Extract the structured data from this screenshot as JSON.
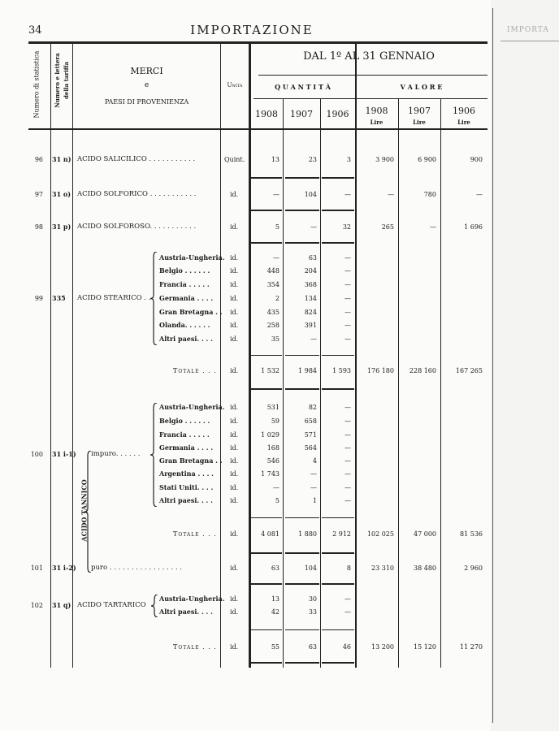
{
  "page": {
    "number": "34",
    "title": "IMPORTAZIONE"
  },
  "header": {
    "col_num_stat": "Numero di statistica",
    "col_num_tariff": "Numero e lettera della tariffa",
    "merci_1": "MERCI",
    "merci_2": "e",
    "merci_3": "PAESI DI PROVENIENZA",
    "unit": "Unità",
    "period": "DAL 1º AL 31 GENNAIO",
    "quantity": "Q U A N T I T À",
    "value": "V A L O R E",
    "years": [
      "1908",
      "1907",
      "1906",
      "1908",
      "1907",
      "1906"
    ],
    "currency": "Lire"
  },
  "groups": [
    {
      "num": "96",
      "tariff": "31 n)",
      "name": "ACIDO SALICILICO . . . . . . . . . . ."
    },
    {
      "num": "97",
      "tariff": "31 o)",
      "name": "ACIDO SOLFORICO . . . . . . . . . . ."
    },
    {
      "num": "98",
      "tariff": "31 p)",
      "name": "ACIDO SOLFOROSO. . . . . . . . . . ."
    },
    {
      "num": "99",
      "tariff": "335",
      "name": "ACIDO STEARICO . ."
    },
    {
      "num": "100",
      "tariff": "31 i-1)",
      "name": "impuro. . . . . ."
    },
    {
      "num": "101",
      "tariff": "31 i-2)",
      "name": "puro . . . . . . . . . . . . . . . . ."
    },
    {
      "num": "102",
      "tariff": "31 q)",
      "name": "ACIDO TARTARICO"
    }
  ],
  "tannic_label": "ACIDO TANNICO",
  "total_label": "Totale . . .",
  "lines": [
    {
      "country": "",
      "unit": "Quint.",
      "q": [
        "13",
        "23",
        "3"
      ],
      "v": [
        "3 900",
        "6 900",
        "900"
      ]
    },
    {
      "country": "",
      "unit": "id.",
      "q": [
        "—",
        "104",
        "—"
      ],
      "v": [
        "—",
        "780",
        "—"
      ]
    },
    {
      "country": "",
      "unit": "id.",
      "q": [
        "5",
        "—",
        "32"
      ],
      "v": [
        "265",
        "—",
        "1 696"
      ]
    },
    {
      "country": "Austria-Ungheria.",
      "unit": "id.",
      "q": [
        "—",
        "63",
        "—"
      ],
      "v": [
        "",
        "",
        ""
      ]
    },
    {
      "country": "Belgio . . . . . .",
      "unit": "id.",
      "q": [
        "448",
        "204",
        "—"
      ],
      "v": [
        "",
        "",
        ""
      ]
    },
    {
      "country": "Francia . . . . .",
      "unit": "id.",
      "q": [
        "354",
        "368",
        "—"
      ],
      "v": [
        "",
        "",
        ""
      ]
    },
    {
      "country": "Germania . . . .",
      "unit": "id.",
      "q": [
        "2",
        "134",
        "—"
      ],
      "v": [
        "",
        "",
        ""
      ]
    },
    {
      "country": "Gran Bretagna . .",
      "unit": "id.",
      "q": [
        "435",
        "824",
        "—"
      ],
      "v": [
        "",
        "",
        ""
      ]
    },
    {
      "country": "Olanda. . . . . .",
      "unit": "id.",
      "q": [
        "258",
        "391",
        "—"
      ],
      "v": [
        "",
        "",
        ""
      ]
    },
    {
      "country": "Altri paesi. . . .",
      "unit": "id.",
      "q": [
        "35",
        "—",
        "—"
      ],
      "v": [
        "",
        "",
        ""
      ]
    },
    {
      "country": "TOTALE",
      "unit": "id.",
      "q": [
        "1 532",
        "1 984",
        "1 593"
      ],
      "v": [
        "176 180",
        "228 160",
        "167 265"
      ]
    },
    {
      "country": "Austria-Ungheria.",
      "unit": "id.",
      "q": [
        "531",
        "82",
        "—"
      ],
      "v": [
        "",
        "",
        ""
      ]
    },
    {
      "country": "Belgio . . . . . .",
      "unit": "id.",
      "q": [
        "59",
        "658",
        "—"
      ],
      "v": [
        "",
        "",
        ""
      ]
    },
    {
      "country": "Francia . . . . .",
      "unit": "id.",
      "q": [
        "1 029",
        "571",
        "—"
      ],
      "v": [
        "",
        "",
        ""
      ]
    },
    {
      "country": "Germania . . . .",
      "unit": "id.",
      "q": [
        "168",
        "564",
        "—"
      ],
      "v": [
        "",
        "",
        ""
      ]
    },
    {
      "country": "Gran Bretagna . .",
      "unit": "id.",
      "q": [
        "546",
        "4",
        "—"
      ],
      "v": [
        "",
        "",
        ""
      ]
    },
    {
      "country": "Argentina . . . .",
      "unit": "id.",
      "q": [
        "1 743",
        "—",
        "—"
      ],
      "v": [
        "",
        "",
        ""
      ]
    },
    {
      "country": "Stati Uniti. . . .",
      "unit": "id.",
      "q": [
        "—",
        "—",
        "—"
      ],
      "v": [
        "",
        "",
        ""
      ]
    },
    {
      "country": "Altri paesi. . . .",
      "unit": "id.",
      "q": [
        "5",
        "1",
        "—"
      ],
      "v": [
        "",
        "",
        ""
      ]
    },
    {
      "country": "TOTALE",
      "unit": "id.",
      "q": [
        "4 081",
        "1 880",
        "2 912"
      ],
      "v": [
        "102 025",
        "47 000",
        "81 536"
      ]
    },
    {
      "country": "",
      "unit": "id.",
      "q": [
        "63",
        "104",
        "8"
      ],
      "v": [
        "23 310",
        "38 480",
        "2 960"
      ]
    },
    {
      "country": "Austria-Ungheria.",
      "unit": "id.",
      "q": [
        "13",
        "30",
        "—"
      ],
      "v": [
        "",
        "",
        ""
      ]
    },
    {
      "country": "Altri paesi. . . .",
      "unit": "id.",
      "q": [
        "42",
        "33",
        "—"
      ],
      "v": [
        "",
        "",
        ""
      ]
    },
    {
      "country": "TOTALE",
      "unit": "id.",
      "q": [
        "55",
        "63",
        "46"
      ],
      "v": [
        "13 200",
        "15 120",
        "11 270"
      ]
    }
  ],
  "facing_page_header": "IMPORTA"
}
